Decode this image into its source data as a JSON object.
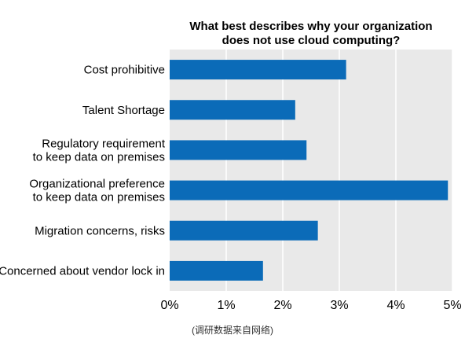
{
  "chart_data": {
    "type": "bar",
    "orientation": "horizontal",
    "title_lines": [
      "What best describes  why your organization",
      "does not use cloud computing?"
    ],
    "categories": [
      [
        "Cost prohibitive"
      ],
      [
        "Talent Shortage"
      ],
      [
        "Regulatory requirement",
        "to keep data on premises"
      ],
      [
        "Organizational preference",
        "to keep data on premises"
      ],
      [
        "Migration concerns, risks"
      ],
      [
        "Concerned about vendor lock in"
      ]
    ],
    "values": [
      3.12,
      2.22,
      2.42,
      4.92,
      2.62,
      1.65
    ],
    "xlim": [
      0,
      5
    ],
    "x_ticks": [
      "0%",
      "1%",
      "2%",
      "3%",
      "4%",
      "5%"
    ],
    "grid": true,
    "bar_color": "#0b6bb8",
    "plot_background": "#e9e9e9",
    "grid_color": "#ffffff"
  },
  "source_note": "(调研数据来自网络)"
}
